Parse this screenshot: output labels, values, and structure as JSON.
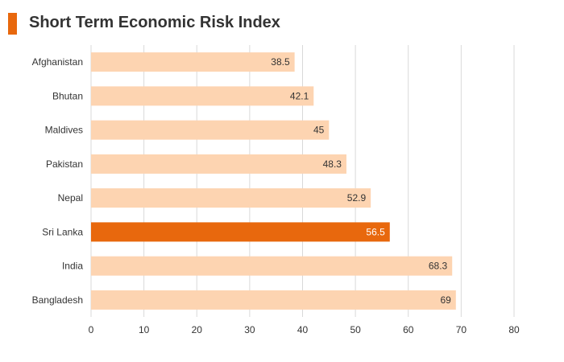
{
  "title": "Short Term Economic Risk Index",
  "colors": {
    "accent": "#E8680D",
    "bar": "#FDD4B1",
    "highlight": "#E8680D",
    "grid": "#D9D9D9",
    "label": "#333333"
  },
  "chart_data": {
    "type": "bar",
    "orientation": "horizontal",
    "title": "Short Term Economic Risk Index",
    "categories": [
      "Afghanistan",
      "Bhutan",
      "Maldives",
      "Pakistan",
      "Nepal",
      "Sri Lanka",
      "India",
      "Bangladesh"
    ],
    "values": [
      38.5,
      42.1,
      45,
      48.3,
      52.9,
      56.5,
      68.3,
      69
    ],
    "value_labels": [
      "38.5",
      "42.1",
      "45",
      "48.3",
      "52.9",
      "56.5",
      "68.3",
      "69"
    ],
    "highlighted_category": "Sri Lanka",
    "xlim": [
      0,
      80
    ],
    "xticks": [
      0,
      10,
      20,
      30,
      40,
      50,
      60,
      70,
      80
    ],
    "xlabel": "",
    "ylabel": "",
    "grid": "vertical",
    "legend": "none"
  }
}
